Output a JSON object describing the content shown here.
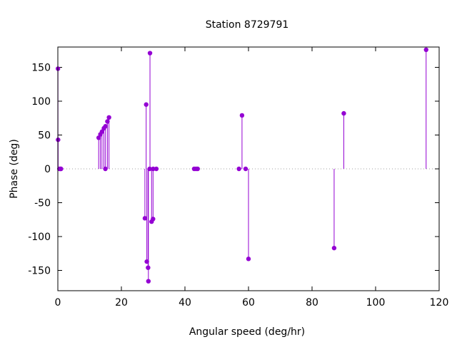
{
  "chart_data": {
    "type": "scatter",
    "style": "impulses with points",
    "title": "Station 8729791",
    "xlabel": "Angular speed (deg/hr)",
    "ylabel": "Phase (deg)",
    "xlim": [
      0,
      120
    ],
    "ylim": [
      -180,
      180
    ],
    "xticks": [
      0,
      20,
      40,
      60,
      80,
      100,
      120
    ],
    "yticks": [
      -150,
      -100,
      -50,
      0,
      50,
      100,
      150
    ],
    "zero_line": "dotted",
    "grid": false,
    "legend": "none",
    "color": "#9400d3",
    "points": [
      {
        "x": 0.04,
        "y": 148
      },
      {
        "x": 0.08,
        "y": 43
      },
      {
        "x": 0.5,
        "y": 0
      },
      {
        "x": 0.8,
        "y": 0
      },
      {
        "x": 1.0,
        "y": 0
      },
      {
        "x": 12.85,
        "y": 46
      },
      {
        "x": 13.4,
        "y": 51
      },
      {
        "x": 13.9,
        "y": 55
      },
      {
        "x": 14.5,
        "y": 60
      },
      {
        "x": 14.96,
        "y": 0
      },
      {
        "x": 15.0,
        "y": 63
      },
      {
        "x": 15.6,
        "y": 70
      },
      {
        "x": 16.1,
        "y": 76
      },
      {
        "x": 27.4,
        "y": -73
      },
      {
        "x": 27.8,
        "y": 95
      },
      {
        "x": 28.0,
        "y": -137
      },
      {
        "x": 28.4,
        "y": -146
      },
      {
        "x": 28.5,
        "y": -166
      },
      {
        "x": 28.9,
        "y": 0
      },
      {
        "x": 29.0,
        "y": 171
      },
      {
        "x": 29.5,
        "y": -78
      },
      {
        "x": 29.96,
        "y": -74
      },
      {
        "x": 30.0,
        "y": 0
      },
      {
        "x": 31.0,
        "y": 0
      },
      {
        "x": 42.9,
        "y": 0
      },
      {
        "x": 43.5,
        "y": 0
      },
      {
        "x": 44.0,
        "y": 0
      },
      {
        "x": 57.0,
        "y": 0
      },
      {
        "x": 57.96,
        "y": 79
      },
      {
        "x": 59.1,
        "y": 0
      },
      {
        "x": 60.0,
        "y": -133
      },
      {
        "x": 86.95,
        "y": -117
      },
      {
        "x": 89.99,
        "y": 82
      },
      {
        "x": 115.9,
        "y": 176
      }
    ]
  }
}
